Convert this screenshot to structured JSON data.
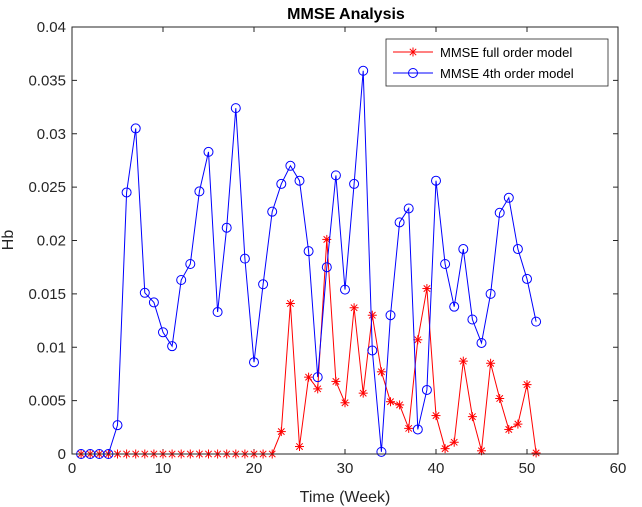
{
  "chart_data": {
    "type": "line",
    "title": "MMSE Analysis",
    "xlabel": "Time (Week)",
    "ylabel": "Hb",
    "xlim": [
      0,
      60
    ],
    "ylim": [
      0,
      0.04
    ],
    "xticks": [
      0,
      10,
      20,
      30,
      40,
      50,
      60
    ],
    "yticks": [
      0,
      0.005,
      0.01,
      0.015,
      0.02,
      0.025,
      0.03,
      0.035,
      0.04
    ],
    "xtick_labels": [
      "0",
      "10",
      "20",
      "30",
      "40",
      "50",
      "60"
    ],
    "ytick_labels": [
      "0",
      "0.005",
      "0.01",
      "0.015",
      "0.02",
      "0.025",
      "0.03",
      "0.035",
      "0.04"
    ],
    "grid": false,
    "legend_position": "top-right",
    "x": [
      1,
      2,
      3,
      4,
      5,
      6,
      7,
      8,
      9,
      10,
      11,
      12,
      13,
      14,
      15,
      16,
      17,
      18,
      19,
      20,
      21,
      22,
      23,
      24,
      25,
      26,
      27,
      28,
      29,
      30,
      31,
      32,
      33,
      34,
      35,
      36,
      37,
      38,
      39,
      40,
      41,
      42,
      43,
      44,
      45,
      46,
      47,
      48,
      49,
      50,
      51
    ],
    "series": [
      {
        "name": "MMSE full order model",
        "color": "#ff0000",
        "marker": "asterisk",
        "values": [
          0,
          0,
          0,
          0,
          0,
          0,
          0,
          0,
          0,
          0,
          0,
          0,
          0,
          0,
          0,
          0,
          0,
          0,
          0,
          0,
          0,
          0,
          0.0021,
          0.0141,
          0.0007,
          0.0072,
          0.0061,
          0.0201,
          0.0068,
          0.0048,
          0.0137,
          0.0057,
          0.013,
          0.0077,
          0.0049,
          0.0046,
          0.0024,
          0.0107,
          0.0155,
          0.0036,
          0.0005,
          0.0011,
          0.0087,
          0.0035,
          0.0003,
          0.0085,
          0.0052,
          0.0023,
          0.0028,
          0.0065,
          0.0001
        ]
      },
      {
        "name": "MMSE 4th order model",
        "color": "#0000ff",
        "marker": "circle",
        "values": [
          0,
          0,
          0,
          0,
          0.0027,
          0.0245,
          0.0305,
          0.0151,
          0.0142,
          0.0114,
          0.0101,
          0.0163,
          0.0178,
          0.0246,
          0.0283,
          0.0133,
          0.0212,
          0.0324,
          0.0183,
          0.0086,
          0.0159,
          0.0227,
          0.0253,
          0.027,
          0.0256,
          0.019,
          0.0072,
          0.0175,
          0.0261,
          0.0154,
          0.0253,
          0.0359,
          0.0097,
          0.0002,
          0.013,
          0.0217,
          0.023,
          0.0023,
          0.006,
          0.0256,
          0.0178,
          0.0138,
          0.0192,
          0.0126,
          0.0104,
          0.015,
          0.0226,
          0.024,
          0.0192,
          0.0164,
          0.0124
        ]
      }
    ]
  }
}
